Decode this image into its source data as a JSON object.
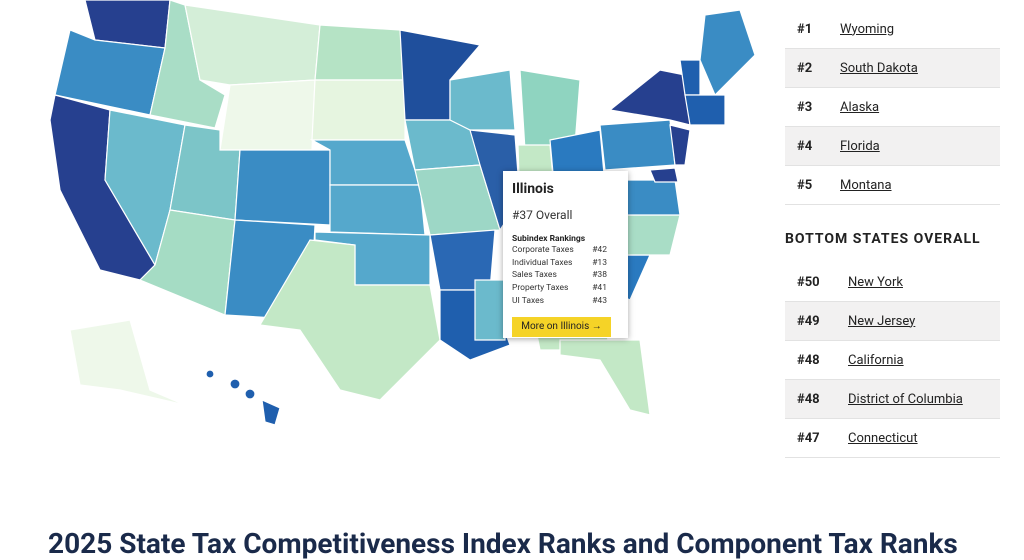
{
  "tooltip": {
    "state": "Illinois",
    "overall": "#37 Overall",
    "subindex_title": "Subindex Rankings",
    "rows": [
      [
        "Corporate Taxes",
        "#42"
      ],
      [
        "Individual Taxes",
        "#13"
      ],
      [
        "Sales Taxes",
        "#38"
      ],
      [
        "Property Taxes",
        "#41"
      ],
      [
        "UI Taxes",
        "#43"
      ]
    ],
    "button": "More on Illinois →"
  },
  "top_states": [
    [
      "#1",
      "Wyoming"
    ],
    [
      "#2",
      "South Dakota"
    ],
    [
      "#3",
      "Alaska"
    ],
    [
      "#4",
      "Florida"
    ],
    [
      "#5",
      "Montana"
    ]
  ],
  "bottom_heading": "BOTTOM STATES OVERALL",
  "bottom_states": [
    [
      "#50",
      "New York"
    ],
    [
      "#49",
      "New Jersey"
    ],
    [
      "#48",
      "California"
    ],
    [
      "#48",
      "District of Columbia"
    ],
    [
      "#47",
      "Connecticut"
    ]
  ],
  "section_title": "2025 State Tax Competitiveness Index Ranks and Component Tax Ranks"
}
